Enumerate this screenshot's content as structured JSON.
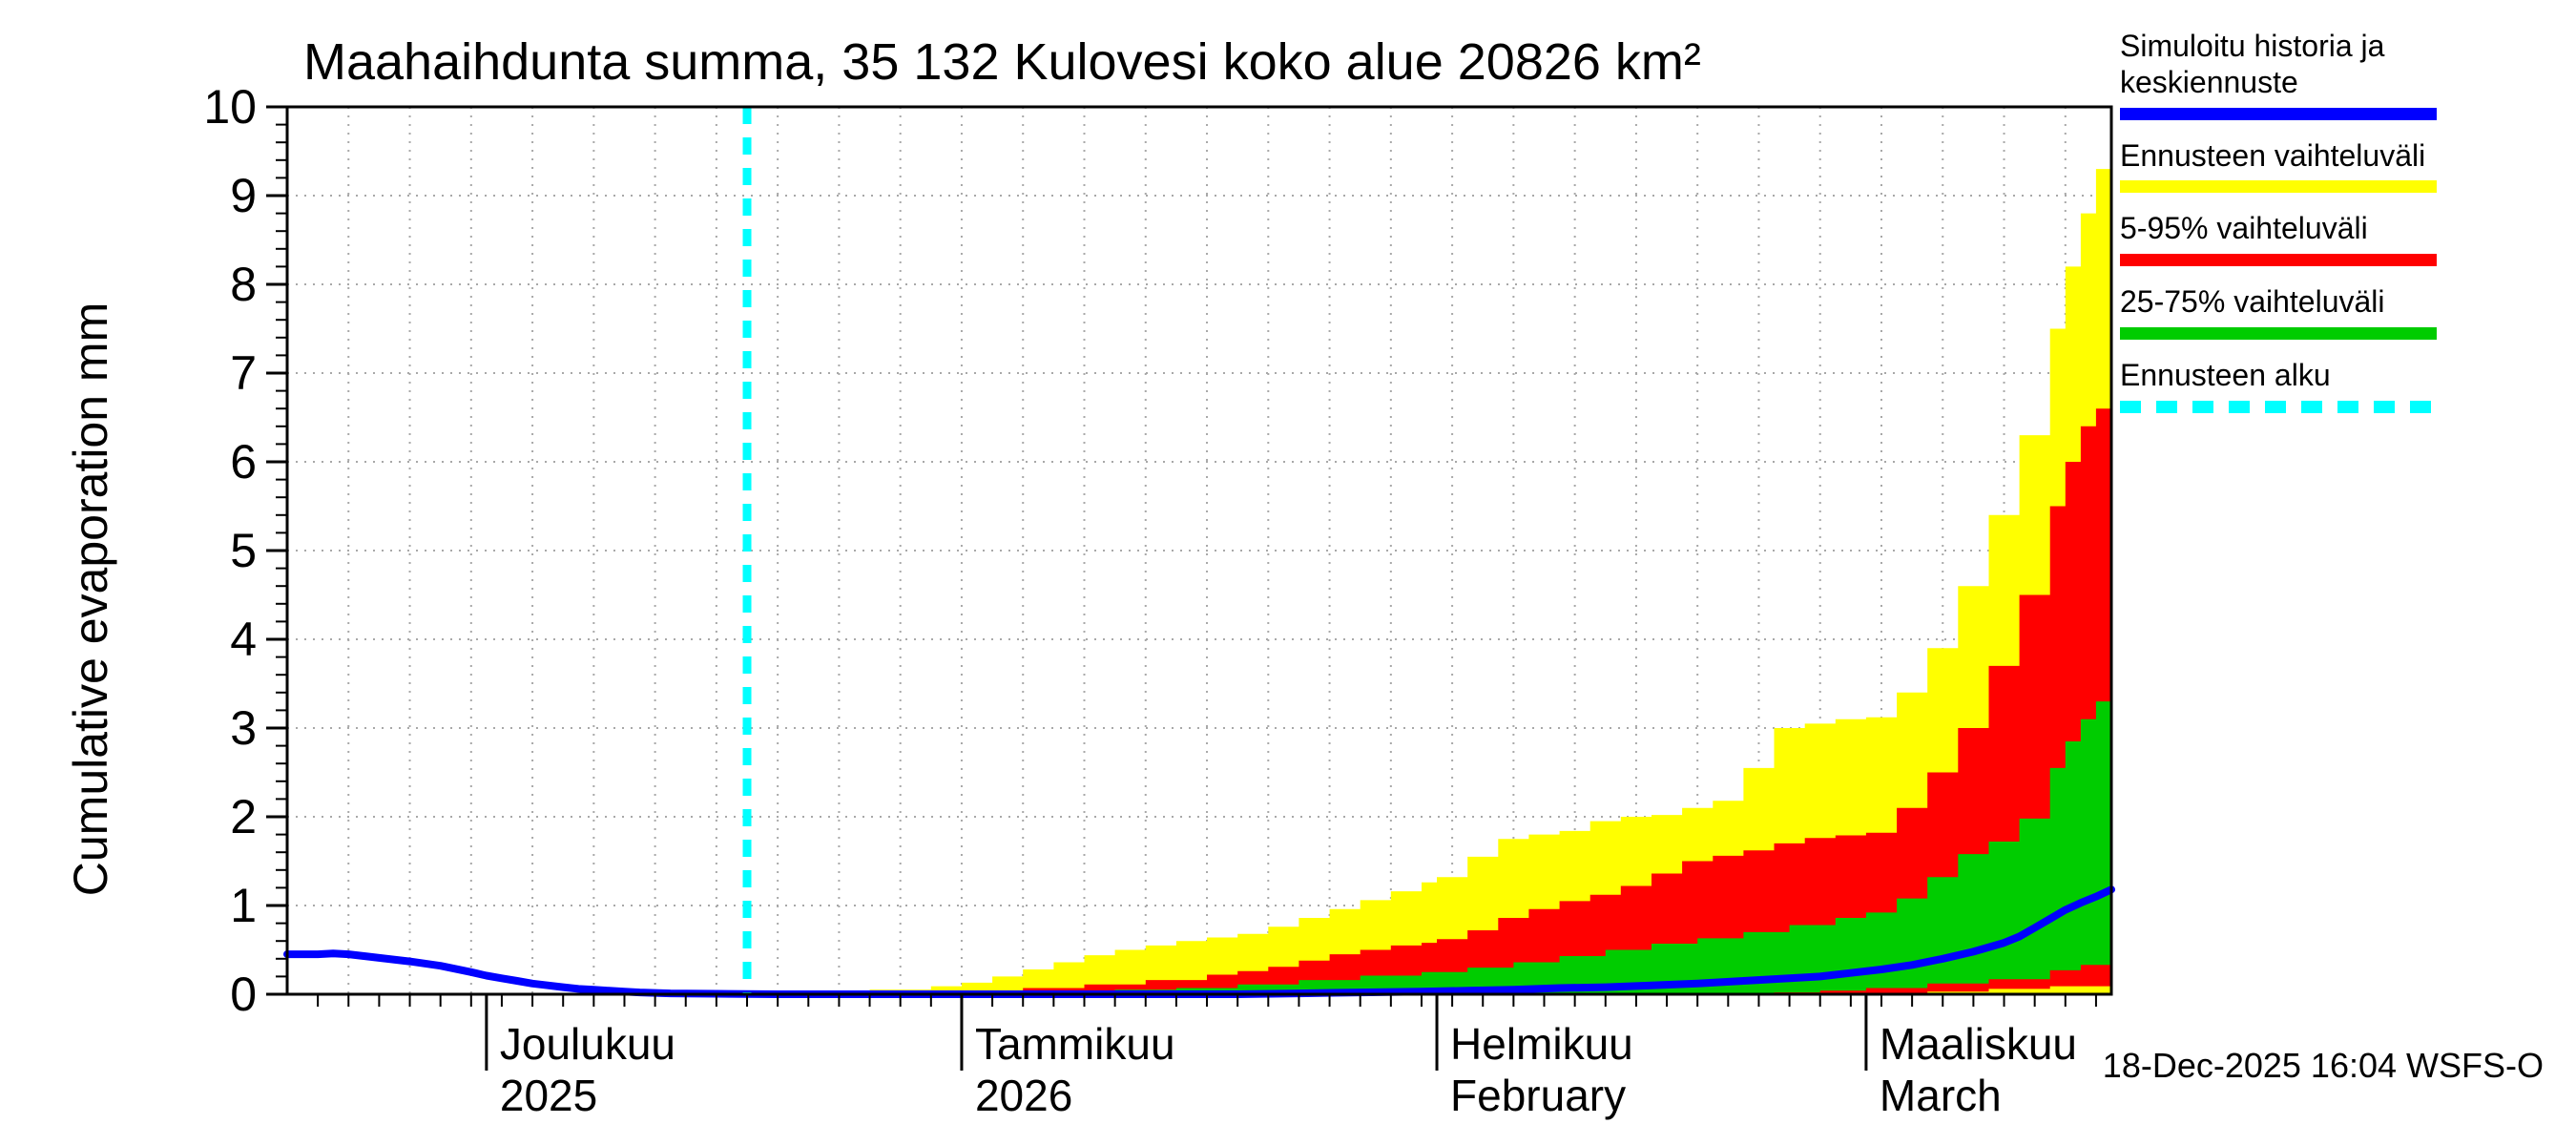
{
  "footer": {
    "timestamp": "18-Dec-2025 16:04 WSFS-O"
  },
  "chart_data": {
    "type": "area",
    "title": "Maahaihdunta summa, 35 132 Kulovesi koko alue 20826 km²",
    "ylabel": "Cumulative evaporation  mm",
    "ylim": [
      0,
      10
    ],
    "y_major_step": 1,
    "y_minor_per_major": 5,
    "grid": "dotted",
    "legend_position": "top-right",
    "forecast_start_day": 30,
    "forecast_start_label": "Ennusteen alku",
    "x_axis": {
      "unit": "days from 18-Nov-2025 to 17-Mar-2026",
      "total_days": 119,
      "grid_step_days": 4,
      "minor_tick_days": 2,
      "month_ticks": [
        {
          "day": 13,
          "line1": "Joulukuu",
          "line2": "2025"
        },
        {
          "day": 44,
          "line1": "Tammikuu",
          "line2": "2026"
        },
        {
          "day": 75,
          "line1": "Helmikuu",
          "line2": "February"
        },
        {
          "day": 103,
          "line1": "Maaliskuu",
          "line2": "March"
        }
      ]
    },
    "colors": {
      "median": "#0000ff",
      "minmax": "#ffff00",
      "p5_95": "#ff0000",
      "p25_75": "#00cc00",
      "forecast_line": "#00ffff",
      "grid": "#a8a8a8",
      "axis": "#000000"
    },
    "legend": [
      {
        "label": "Simuloitu historia ja keskiennuste",
        "color": "#0000ff",
        "style": "solid"
      },
      {
        "label": "Ennusteen vaihteluväli",
        "color": "#ffff00",
        "style": "solid"
      },
      {
        "label": "5-95% vaihteluväli",
        "color": "#ff0000",
        "style": "solid"
      },
      {
        "label": "25-75% vaihteluväli",
        "color": "#00cc00",
        "style": "solid"
      },
      {
        "label": "Ennusteen alku",
        "color": "#00ffff",
        "style": "dashed"
      }
    ],
    "median_line": {
      "label": "Simuloitu historia ja keskiennuste",
      "color": "#0000ff",
      "points": [
        [
          0,
          0.45
        ],
        [
          2,
          0.45
        ],
        [
          3,
          0.46
        ],
        [
          4,
          0.45
        ],
        [
          6,
          0.41
        ],
        [
          8,
          0.37
        ],
        [
          10,
          0.32
        ],
        [
          12,
          0.25
        ],
        [
          13,
          0.21
        ],
        [
          14,
          0.18
        ],
        [
          15,
          0.15
        ],
        [
          16,
          0.12
        ],
        [
          17,
          0.1
        ],
        [
          18,
          0.08
        ],
        [
          19,
          0.06
        ],
        [
          20,
          0.05
        ],
        [
          21,
          0.04
        ],
        [
          22,
          0.03
        ],
        [
          23,
          0.02
        ],
        [
          25,
          0.01
        ],
        [
          28,
          0.005
        ],
        [
          32,
          0
        ],
        [
          40,
          0
        ],
        [
          50,
          0
        ],
        [
          58,
          0
        ],
        [
          62,
          0
        ],
        [
          66,
          0.01
        ],
        [
          70,
          0.02
        ],
        [
          74,
          0.03
        ],
        [
          77,
          0.04
        ],
        [
          80,
          0.05
        ],
        [
          83,
          0.07
        ],
        [
          86,
          0.08
        ],
        [
          89,
          0.1
        ],
        [
          92,
          0.12
        ],
        [
          95,
          0.15
        ],
        [
          98,
          0.18
        ],
        [
          100,
          0.2
        ],
        [
          102,
          0.24
        ],
        [
          104,
          0.28
        ],
        [
          106,
          0.33
        ],
        [
          108,
          0.4
        ],
        [
          110,
          0.48
        ],
        [
          112,
          0.58
        ],
        [
          113,
          0.65
        ],
        [
          114,
          0.75
        ],
        [
          115,
          0.85
        ],
        [
          116,
          0.95
        ],
        [
          117,
          1.03
        ],
        [
          118,
          1.1
        ],
        [
          119,
          1.18
        ]
      ]
    },
    "bands": [
      {
        "label": "Ennusteen vaihteluväli",
        "color": "#ffff00",
        "upper": [
          [
            30,
            0
          ],
          [
            34,
            0.02
          ],
          [
            38,
            0.05
          ],
          [
            42,
            0.09
          ],
          [
            44,
            0.13
          ],
          [
            46,
            0.2
          ],
          [
            48,
            0.28
          ],
          [
            50,
            0.36
          ],
          [
            52,
            0.44
          ],
          [
            54,
            0.5
          ],
          [
            56,
            0.55
          ],
          [
            58,
            0.6
          ],
          [
            60,
            0.64
          ],
          [
            62,
            0.68
          ],
          [
            64,
            0.76
          ],
          [
            66,
            0.86
          ],
          [
            68,
            0.96
          ],
          [
            70,
            1.06
          ],
          [
            72,
            1.16
          ],
          [
            74,
            1.26
          ],
          [
            75,
            1.32
          ],
          [
            77,
            1.55
          ],
          [
            79,
            1.75
          ],
          [
            81,
            1.8
          ],
          [
            83,
            1.84
          ],
          [
            85,
            1.95
          ],
          [
            87,
            2.0
          ],
          [
            89,
            2.02
          ],
          [
            91,
            2.1
          ],
          [
            93,
            2.18
          ],
          [
            95,
            2.55
          ],
          [
            97,
            3.0
          ],
          [
            99,
            3.05
          ],
          [
            101,
            3.1
          ],
          [
            103,
            3.12
          ],
          [
            105,
            3.4
          ],
          [
            107,
            3.9
          ],
          [
            109,
            4.6
          ],
          [
            111,
            5.4
          ],
          [
            113,
            6.3
          ],
          [
            115,
            7.5
          ],
          [
            116,
            8.2
          ],
          [
            117,
            8.8
          ],
          [
            118,
            9.3
          ],
          [
            119,
            9.6
          ]
        ],
        "lower": [
          [
            30,
            0
          ],
          [
            119,
            0
          ]
        ]
      },
      {
        "label": "5-95% vaihteluväli",
        "color": "#ff0000",
        "upper": [
          [
            30,
            0
          ],
          [
            36,
            0.01
          ],
          [
            40,
            0.02
          ],
          [
            44,
            0.04
          ],
          [
            48,
            0.07
          ],
          [
            52,
            0.11
          ],
          [
            56,
            0.16
          ],
          [
            60,
            0.22
          ],
          [
            62,
            0.26
          ],
          [
            64,
            0.31
          ],
          [
            66,
            0.38
          ],
          [
            68,
            0.45
          ],
          [
            70,
            0.5
          ],
          [
            72,
            0.55
          ],
          [
            74,
            0.58
          ],
          [
            75,
            0.62
          ],
          [
            77,
            0.72
          ],
          [
            79,
            0.86
          ],
          [
            81,
            0.96
          ],
          [
            83,
            1.05
          ],
          [
            85,
            1.12
          ],
          [
            87,
            1.22
          ],
          [
            89,
            1.36
          ],
          [
            91,
            1.5
          ],
          [
            93,
            1.56
          ],
          [
            95,
            1.62
          ],
          [
            97,
            1.7
          ],
          [
            99,
            1.76
          ],
          [
            101,
            1.79
          ],
          [
            103,
            1.82
          ],
          [
            105,
            2.1
          ],
          [
            107,
            2.5
          ],
          [
            109,
            3.0
          ],
          [
            111,
            3.7
          ],
          [
            113,
            4.5
          ],
          [
            115,
            5.5
          ],
          [
            116,
            6.0
          ],
          [
            117,
            6.4
          ],
          [
            118,
            6.6
          ],
          [
            119,
            6.72
          ]
        ],
        "lower": [
          [
            30,
            0
          ],
          [
            100,
            0
          ],
          [
            103,
            0.01
          ],
          [
            107,
            0.03
          ],
          [
            111,
            0.06
          ],
          [
            115,
            0.09
          ],
          [
            119,
            0.13
          ]
        ]
      },
      {
        "label": "25-75% vaihteluväli",
        "color": "#00cc00",
        "upper": [
          [
            30,
            0
          ],
          [
            40,
            0.01
          ],
          [
            48,
            0.03
          ],
          [
            54,
            0.05
          ],
          [
            58,
            0.07
          ],
          [
            62,
            0.11
          ],
          [
            66,
            0.16
          ],
          [
            70,
            0.21
          ],
          [
            74,
            0.25
          ],
          [
            77,
            0.3
          ],
          [
            80,
            0.36
          ],
          [
            83,
            0.43
          ],
          [
            86,
            0.5
          ],
          [
            89,
            0.57
          ],
          [
            92,
            0.63
          ],
          [
            95,
            0.7
          ],
          [
            98,
            0.78
          ],
          [
            101,
            0.86
          ],
          [
            103,
            0.92
          ],
          [
            105,
            1.08
          ],
          [
            107,
            1.32
          ],
          [
            109,
            1.58
          ],
          [
            111,
            1.72
          ],
          [
            113,
            1.98
          ],
          [
            115,
            2.55
          ],
          [
            116,
            2.85
          ],
          [
            117,
            3.1
          ],
          [
            118,
            3.3
          ],
          [
            119,
            3.45
          ]
        ],
        "lower": [
          [
            30,
            0
          ],
          [
            94,
            0
          ],
          [
            97,
            0.02
          ],
          [
            100,
            0.04
          ],
          [
            103,
            0.07
          ],
          [
            107,
            0.12
          ],
          [
            111,
            0.17
          ],
          [
            115,
            0.27
          ],
          [
            117,
            0.33
          ],
          [
            119,
            0.4
          ]
        ]
      }
    ]
  }
}
